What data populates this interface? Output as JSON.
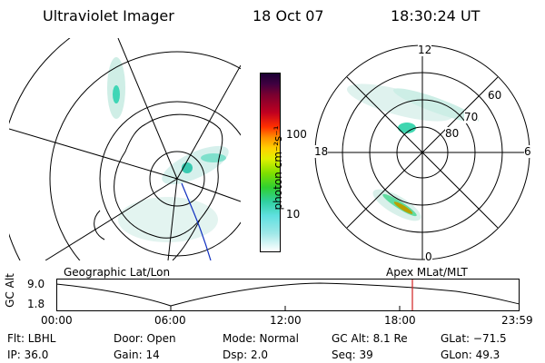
{
  "header": {
    "instrument": "Ultraviolet Imager",
    "date": "18 Oct 07",
    "time": "18:30:24 UT"
  },
  "colorbar": {
    "unit_label": "photon cm⁻²s⁻¹",
    "ticks": [
      "100",
      "10"
    ]
  },
  "polar_plot": {
    "mlt_labels": {
      "top": "12",
      "left": "18",
      "right": "6",
      "bottom": "0"
    },
    "mlat_labels": [
      "60",
      "70",
      "80"
    ]
  },
  "map_labels": {
    "left": "Geographic Lat/Lon",
    "right": "Apex MLat/MLT"
  },
  "altitude_plot": {
    "ylabel": "GC Alt",
    "yticks": [
      "9.0",
      "1.8"
    ],
    "xticks": [
      "00:00",
      "06:00",
      "12:00",
      "18:00",
      "23:59"
    ]
  },
  "info": {
    "flt": "Flt:  LBHL",
    "ip": "IP:  36.0",
    "door": "Door:  Open",
    "gain": "Gain:  14",
    "mode": "Mode:  Normal",
    "dsp": "Dsp:      2.0",
    "gc_alt": "GC Alt:  8.1 Re",
    "seq": "Seq:  39",
    "glat": "GLat:  −71.5",
    "glon": "GLon:    49.3"
  },
  "colors": {
    "marker": "#d02020",
    "track": "#1030c0"
  }
}
